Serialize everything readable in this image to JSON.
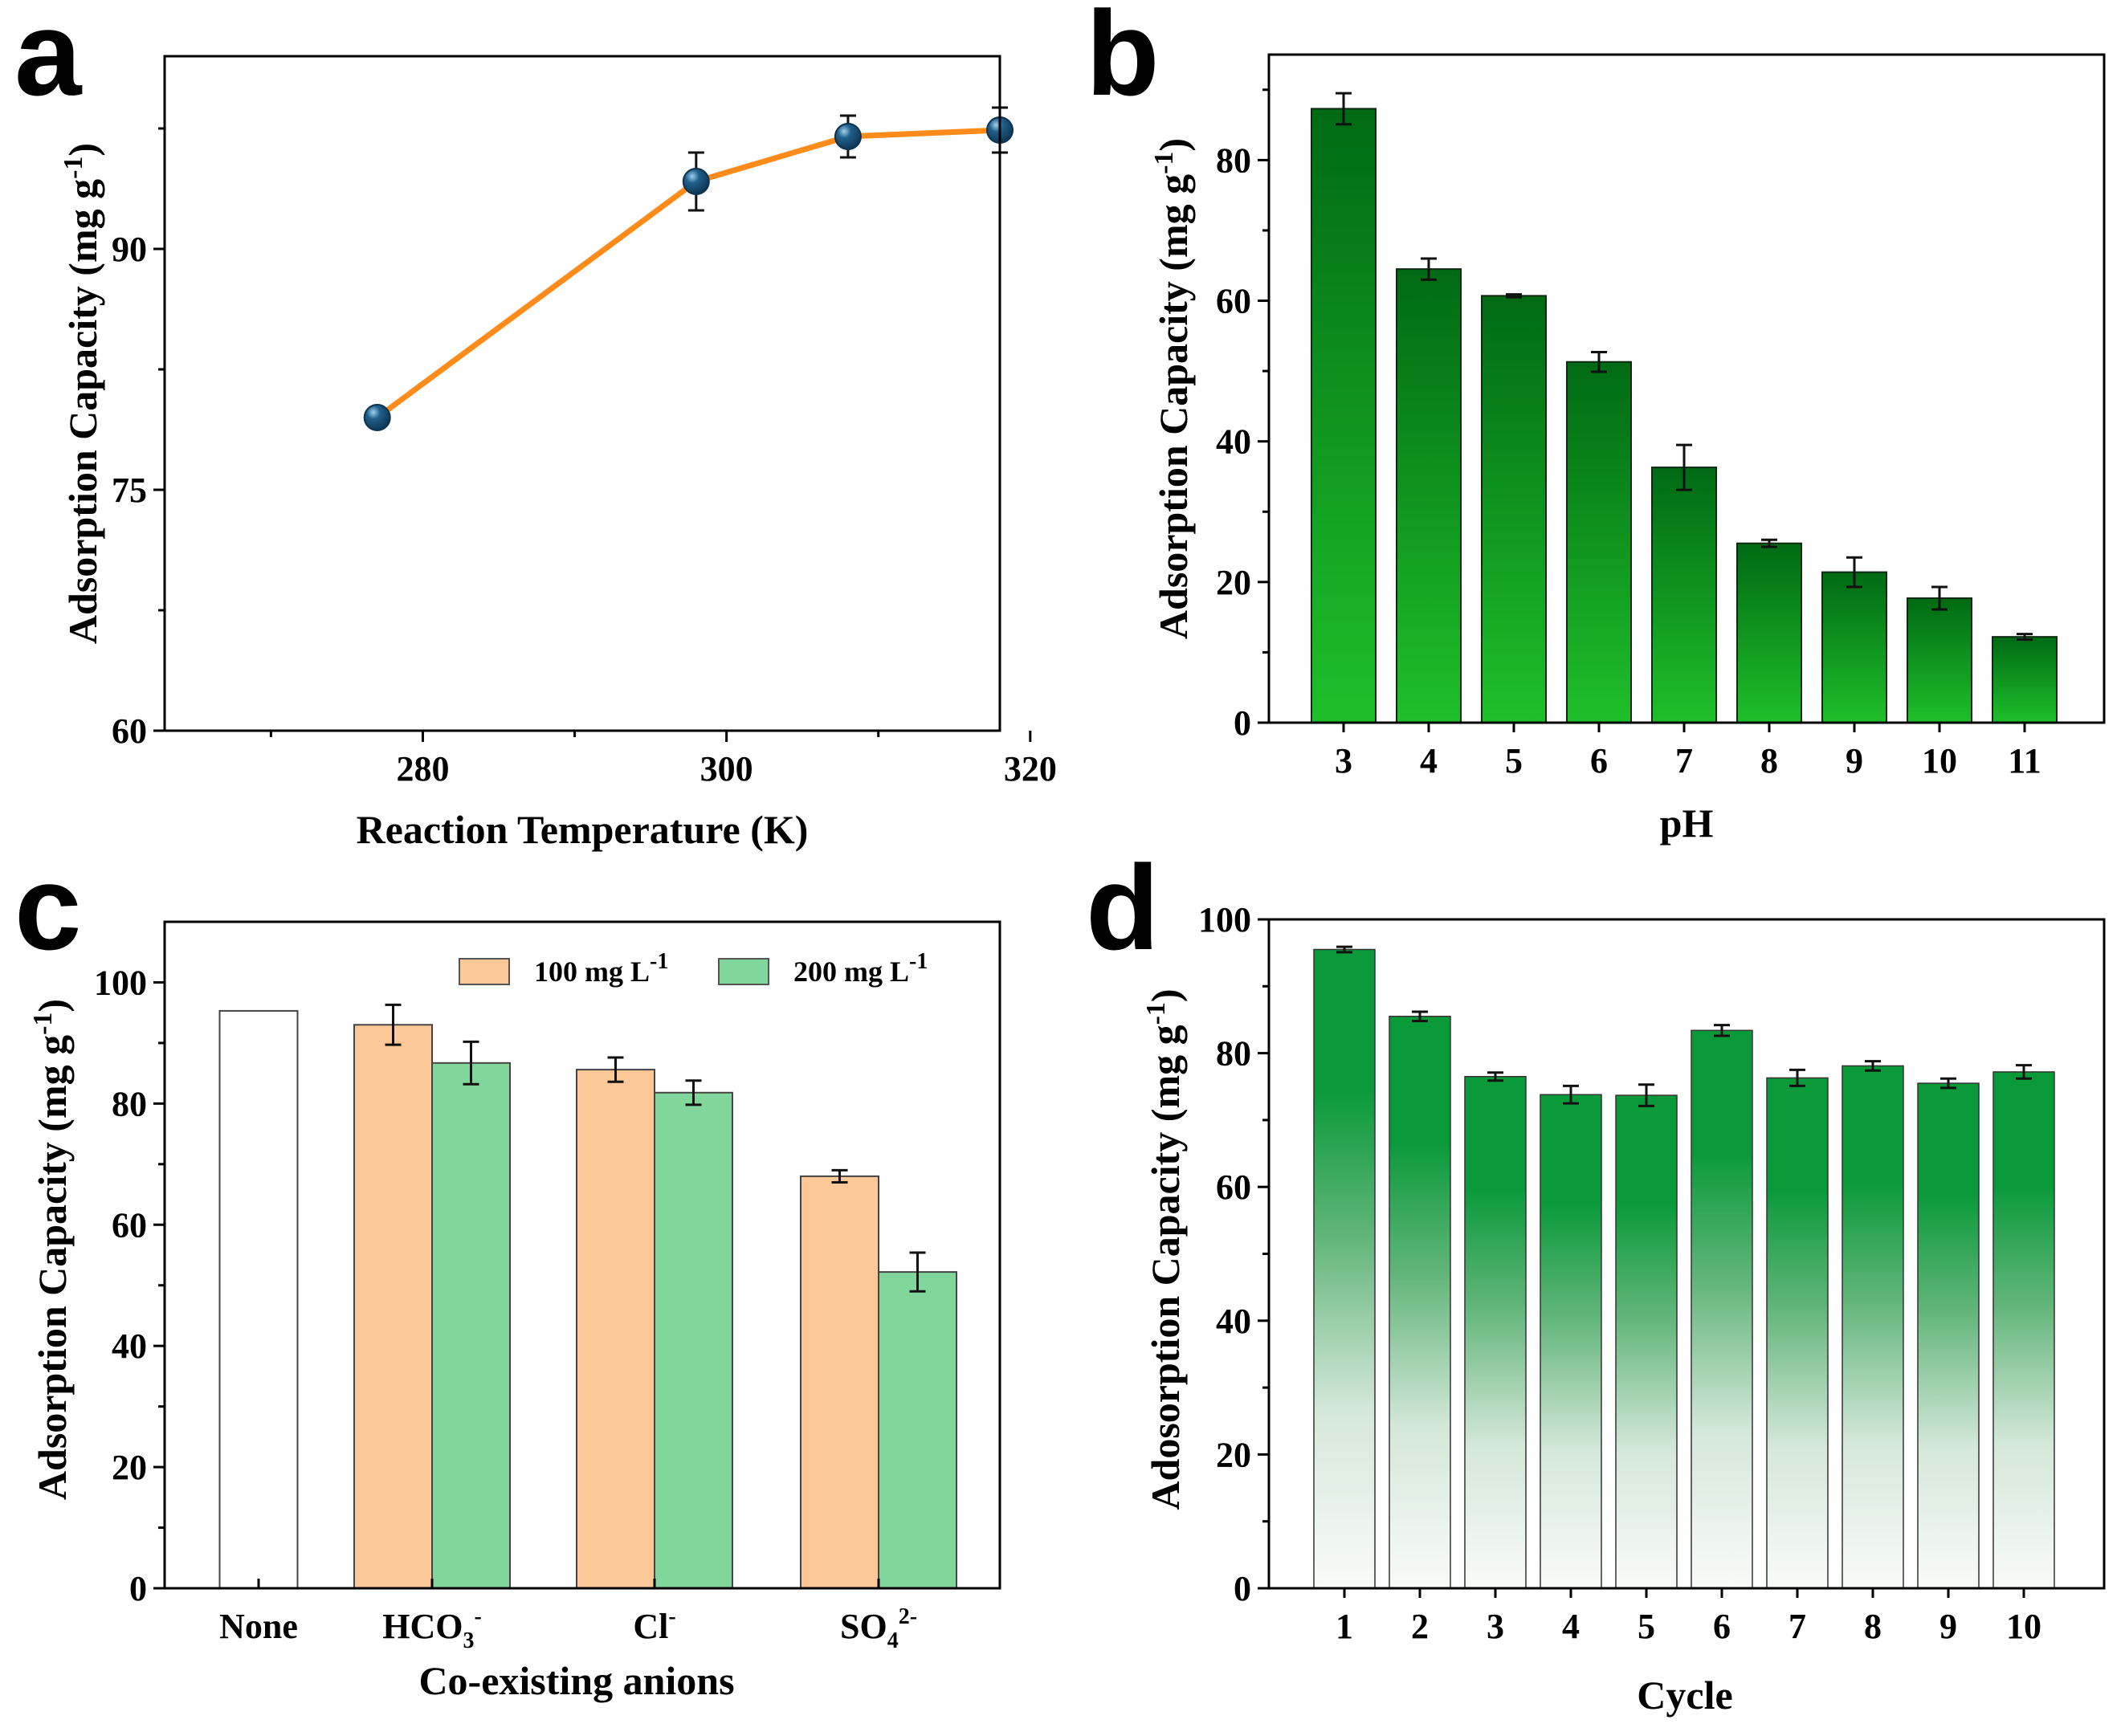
{
  "colors": {
    "line_orange": "#ff8c1a",
    "marker_blue": "#1f5f8b",
    "marker_dark": "#0d3350",
    "bar_green_top": "#006a14",
    "bar_green_bottom": "#1fbf2a",
    "orange_fill": "#fdc898",
    "green_fill": "#80d69b",
    "cycle_green": "#0a9a3a",
    "cycle_pale": "#f7f9f7"
  },
  "panels": [
    {
      "letter": "a"
    },
    {
      "letter": "b"
    },
    {
      "letter": "c"
    },
    {
      "letter": "d"
    }
  ],
  "chart_data": [
    {
      "panel": "a",
      "type": "line",
      "xlabel": "Reaction Temperature (K)",
      "ylabel_main": "Adsorption Capacity (mg g",
      "ylabel_sup": "-1",
      "ylabel_close": ")",
      "x": [
        277,
        298,
        308,
        318
      ],
      "values": [
        79.5,
        94.2,
        97.0,
        97.4
      ],
      "errors": [
        0,
        1.8,
        1.3,
        1.4
      ],
      "xlim": [
        263,
        318
      ],
      "ylim": [
        60,
        102
      ],
      "xticks": [
        280,
        300,
        320
      ],
      "xtick_labels": [
        "280",
        "300",
        "320"
      ],
      "yticks": [
        60,
        75,
        90
      ],
      "ytick_labels": [
        "60",
        "75",
        "90"
      ]
    },
    {
      "panel": "b",
      "type": "bar",
      "xlabel": "pH",
      "ylabel_main": "Adsorption Capacity (mg g",
      "ylabel_sup": "-1",
      "ylabel_close": ")",
      "categories": [
        "3",
        "4",
        "5",
        "6",
        "7",
        "8",
        "9",
        "10",
        "11"
      ],
      "values": [
        87.3,
        64.5,
        60.7,
        51.3,
        36.3,
        25.5,
        21.4,
        17.7,
        12.2
      ],
      "errors": [
        2.2,
        1.5,
        0.2,
        1.4,
        3.2,
        0.5,
        2.1,
        1.6,
        0.4
      ],
      "ylim": [
        0,
        95
      ],
      "yticks": [
        0,
        20,
        40,
        60,
        80
      ],
      "ytick_labels": [
        "0",
        "20",
        "40",
        "60",
        "80"
      ]
    },
    {
      "panel": "c",
      "type": "bar",
      "xlabel": "Co-existing anions",
      "ylabel_main": "Adsorption Capacity (mg g",
      "ylabel_sup": "-1",
      "ylabel_close": ")",
      "categories": [
        {
          "main": "None",
          "sub": "",
          "sup": ""
        },
        {
          "main": "HCO",
          "sub": "3",
          "sup": "-"
        },
        {
          "main": "Cl",
          "sub": "",
          "sup": "-"
        },
        {
          "main": "SO",
          "sub": "4",
          "sup": "2-"
        }
      ],
      "series": [
        {
          "name_main": "100 mg L",
          "name_sup": "-1",
          "values": [
            null,
            93.0,
            85.6,
            68.0
          ],
          "errors": [
            null,
            3.3,
            2.0,
            1.0
          ]
        },
        {
          "name_main": "200 mg L",
          "name_sup": "-1",
          "values": [
            null,
            86.7,
            81.8,
            52.2
          ],
          "errors": [
            null,
            3.5,
            2.0,
            3.2
          ]
        }
      ],
      "control": {
        "value": 95.3
      },
      "ylim": [
        0,
        110
      ],
      "yticks": [
        0,
        20,
        40,
        60,
        80,
        100
      ],
      "ytick_labels": [
        "0",
        "20",
        "40",
        "60",
        "80",
        "100"
      ],
      "legend_position": "top-right"
    },
    {
      "panel": "d",
      "type": "bar",
      "xlabel": "Cycle",
      "ylabel_main": "Adosorption Capacity (mg g",
      "ylabel_sup": "-1",
      "ylabel_close": ")",
      "categories": [
        "1",
        "2",
        "3",
        "4",
        "5",
        "6",
        "7",
        "8",
        "9",
        "10"
      ],
      "values": [
        95.5,
        85.5,
        76.5,
        73.8,
        73.7,
        83.4,
        76.3,
        78.1,
        75.5,
        77.2
      ],
      "errors": [
        0.4,
        0.7,
        0.6,
        1.3,
        1.6,
        0.8,
        1.2,
        0.7,
        0.7,
        1.0
      ],
      "ylim": [
        0,
        100
      ],
      "yticks": [
        0,
        20,
        40,
        60,
        80,
        100
      ],
      "ytick_labels": [
        "0",
        "20",
        "40",
        "60",
        "80",
        "100"
      ]
    }
  ]
}
